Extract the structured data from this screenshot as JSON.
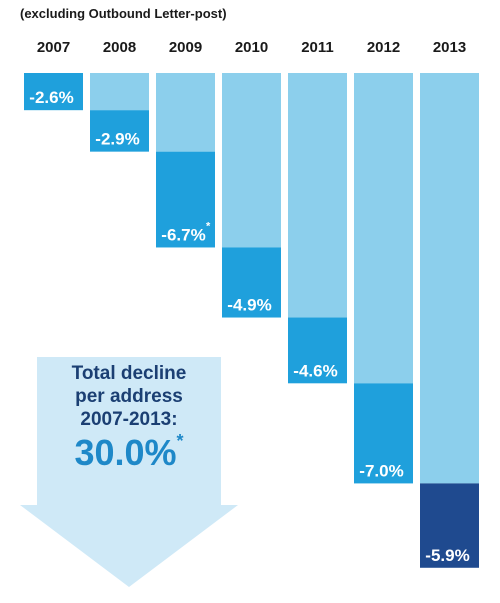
{
  "subtitle": "(excluding Outbound Letter-post)",
  "colors": {
    "background_bar": "#8ccfec",
    "decline_bar": "#1fa0dc",
    "last_decline_bar": "#1f4a8f",
    "arrow": "#cfe9f7",
    "total_text": "#1b3f73",
    "total_value": "#1e88c8"
  },
  "total": {
    "line1": "Total decline",
    "line2": "per address",
    "line3": "2007-2013:",
    "value": "30.0%",
    "marker": "*"
  },
  "chart_data": {
    "type": "bar",
    "subtitle": "(excluding Outbound Letter-post)",
    "categories": [
      "2007",
      "2008",
      "2009",
      "2010",
      "2011",
      "2012",
      "2013"
    ],
    "values": [
      -2.6,
      -2.9,
      -6.7,
      -4.9,
      -4.6,
      -7.0,
      -5.9
    ],
    "labels": [
      "-2.6%",
      "-2.9%",
      "-6.7%",
      "-4.9%",
      "-4.6%",
      "-7.0%",
      "-5.9%"
    ],
    "footnote_markers": [
      "",
      "",
      "*",
      "",
      "",
      "",
      ""
    ],
    "style": "waterfall-cumulative"
  }
}
